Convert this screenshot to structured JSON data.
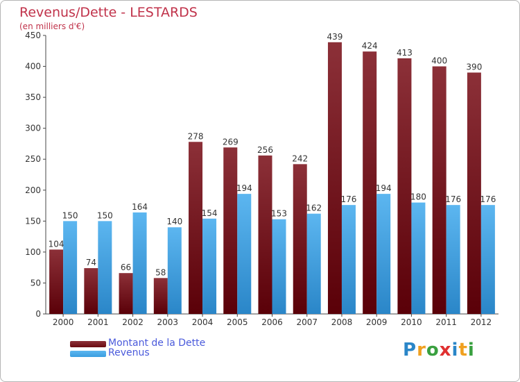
{
  "title": "Revenus/Dette - LESTARDS",
  "subtitle": "(en milliers d'€)",
  "colors": {
    "debt": "#6b0a10",
    "revenue": "#3a9ee0",
    "title": "#c0324a",
    "legend_text": "#4a5adb"
  },
  "legend": [
    {
      "label": "Montant de la Dette",
      "color": "#6b0a10"
    },
    {
      "label": "Revenus",
      "color": "#3a9ee0"
    }
  ],
  "logo": {
    "letters": [
      "P",
      "r",
      "o",
      "x",
      "i",
      "t",
      "i"
    ]
  },
  "chart_data": {
    "type": "bar",
    "title": "Revenus/Dette - LESTARDS",
    "subtitle": "(en milliers d'€)",
    "categories": [
      "2000",
      "2001",
      "2002",
      "2003",
      "2004",
      "2005",
      "2006",
      "2007",
      "2008",
      "2009",
      "2010",
      "2011",
      "2012"
    ],
    "series": [
      {
        "name": "Montant de la Dette",
        "values": [
          104,
          74,
          66,
          58,
          278,
          269,
          256,
          242,
          439,
          424,
          413,
          400,
          390
        ]
      },
      {
        "name": "Revenus",
        "values": [
          150,
          150,
          164,
          140,
          154,
          194,
          153,
          162,
          176,
          194,
          180,
          176,
          176
        ]
      }
    ],
    "ylim": [
      0,
      450
    ],
    "yticks": [
      0,
      50,
      100,
      150,
      200,
      250,
      300,
      350,
      400,
      450
    ],
    "grid": false,
    "legend_position": "bottom-left"
  }
}
